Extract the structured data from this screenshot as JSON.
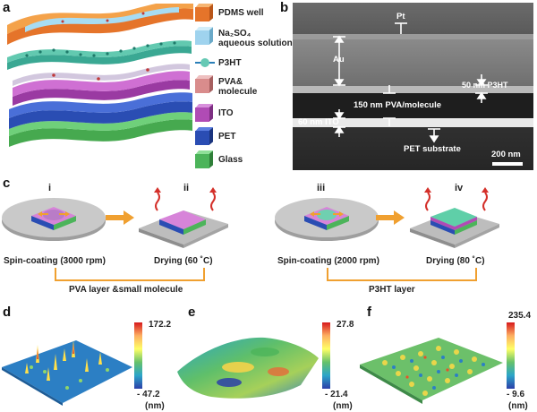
{
  "panel_a": {
    "letter": "a",
    "legend": [
      {
        "label": "PDMS well",
        "color": "#e8843a"
      },
      {
        "label": "Na₂SO₄\naqueous solution",
        "color": "#9fd3ee"
      },
      {
        "label": "P3HT",
        "color": "#4ab9a8"
      },
      {
        "label": "PVA&\nmolecule",
        "color": "#d98c8c"
      },
      {
        "label": "ITO",
        "color": "#b04bb5"
      },
      {
        "label": "PET",
        "color": "#2a4db3"
      },
      {
        "label": "Glass",
        "color": "#4cb45a"
      }
    ]
  },
  "panel_b": {
    "letter": "b",
    "labels": {
      "pt": "Pt",
      "au": "Au",
      "p3ht_thickness": "50 nm P3HT",
      "pva": "150 nm PVA/molecule",
      "ito": "60 nm ITO",
      "pet": "PET substrate",
      "scale": "200 nm"
    }
  },
  "panel_c": {
    "letter": "c",
    "steps": [
      {
        "roman": "i",
        "caption": "Spin-coating (3000 rpm)"
      },
      {
        "roman": "ii",
        "caption": "Drying (60 ˚C)"
      },
      {
        "roman": "iii",
        "caption": "Spin-coating (2000 rpm)"
      },
      {
        "roman": "iv",
        "caption": "Drying (80 ˚C)"
      }
    ],
    "group_labels": [
      "PVA layer &small molecule",
      "P3HT layer"
    ],
    "accent": "#f0a030"
  },
  "panel_d": {
    "letter": "d",
    "max": "172.2",
    "min": "- 47.2",
    "unit": "(nm)"
  },
  "panel_e": {
    "letter": "e",
    "max": "27.8",
    "min": "- 21.4",
    "unit": "(nm)"
  },
  "panel_f": {
    "letter": "f",
    "max": "235.4",
    "min": "- 9.6",
    "unit": "(nm)"
  }
}
